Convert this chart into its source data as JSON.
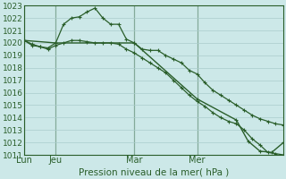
{
  "title": "Pression niveau de la mer( hPa )",
  "bg_color": "#cce8e8",
  "grid_color": "#aacccc",
  "line_color": "#2a5e2a",
  "ylim": [
    1011,
    1023
  ],
  "yticks": [
    1011,
    1012,
    1013,
    1014,
    1015,
    1016,
    1017,
    1018,
    1019,
    1020,
    1021,
    1022,
    1023
  ],
  "day_labels": [
    "Lun",
    "Jeu",
    "Mar",
    "Mer"
  ],
  "day_positions": [
    0,
    8,
    28,
    44
  ],
  "xlim": [
    0,
    66
  ],
  "series1_x": [
    0,
    2,
    4,
    6,
    8,
    10,
    12,
    14,
    16,
    18,
    20,
    22,
    24,
    26,
    28,
    30,
    32,
    34,
    36,
    38,
    40,
    42,
    44,
    46,
    48,
    50,
    52,
    54,
    56,
    58,
    60,
    62,
    64,
    66
  ],
  "series1_y": [
    1020.2,
    1019.8,
    1019.7,
    1019.6,
    1020.0,
    1021.5,
    1022.0,
    1022.1,
    1022.5,
    1022.8,
    1022.0,
    1021.5,
    1021.5,
    1020.3,
    1020.0,
    1019.5,
    1019.4,
    1019.4,
    1019.0,
    1018.7,
    1018.4,
    1017.8,
    1017.5,
    1016.8,
    1016.2,
    1015.8,
    1015.4,
    1015.0,
    1014.6,
    1014.2,
    1013.9,
    1013.7,
    1013.5,
    1013.4
  ],
  "series2_x": [
    0,
    2,
    4,
    6,
    8,
    10,
    12,
    14,
    16,
    18,
    20,
    22,
    24,
    26,
    28,
    30,
    32,
    34,
    36,
    38,
    40,
    42,
    44,
    46,
    48,
    50,
    52,
    54,
    56,
    58,
    60,
    62,
    64,
    66
  ],
  "series2_y": [
    1020.2,
    1019.9,
    1019.7,
    1019.5,
    1019.8,
    1020.0,
    1020.2,
    1020.2,
    1020.1,
    1020.0,
    1020.0,
    1020.0,
    1019.9,
    1019.5,
    1019.2,
    1018.8,
    1018.4,
    1018.0,
    1017.6,
    1017.0,
    1016.4,
    1015.8,
    1015.3,
    1014.9,
    1014.4,
    1014.0,
    1013.7,
    1013.5,
    1013.0,
    1012.3,
    1011.8,
    1011.2,
    1011.1,
    1011.0
  ],
  "series3_x": [
    0,
    8,
    28,
    44,
    54,
    57,
    60,
    63,
    66
  ],
  "series3_y": [
    1020.2,
    1020.0,
    1020.0,
    1015.5,
    1013.8,
    1012.1,
    1011.3,
    1011.2,
    1012.0
  ],
  "title_fontsize": 7.5,
  "ylabel_fontsize": 6.5,
  "xlabel_fontsize": 7
}
